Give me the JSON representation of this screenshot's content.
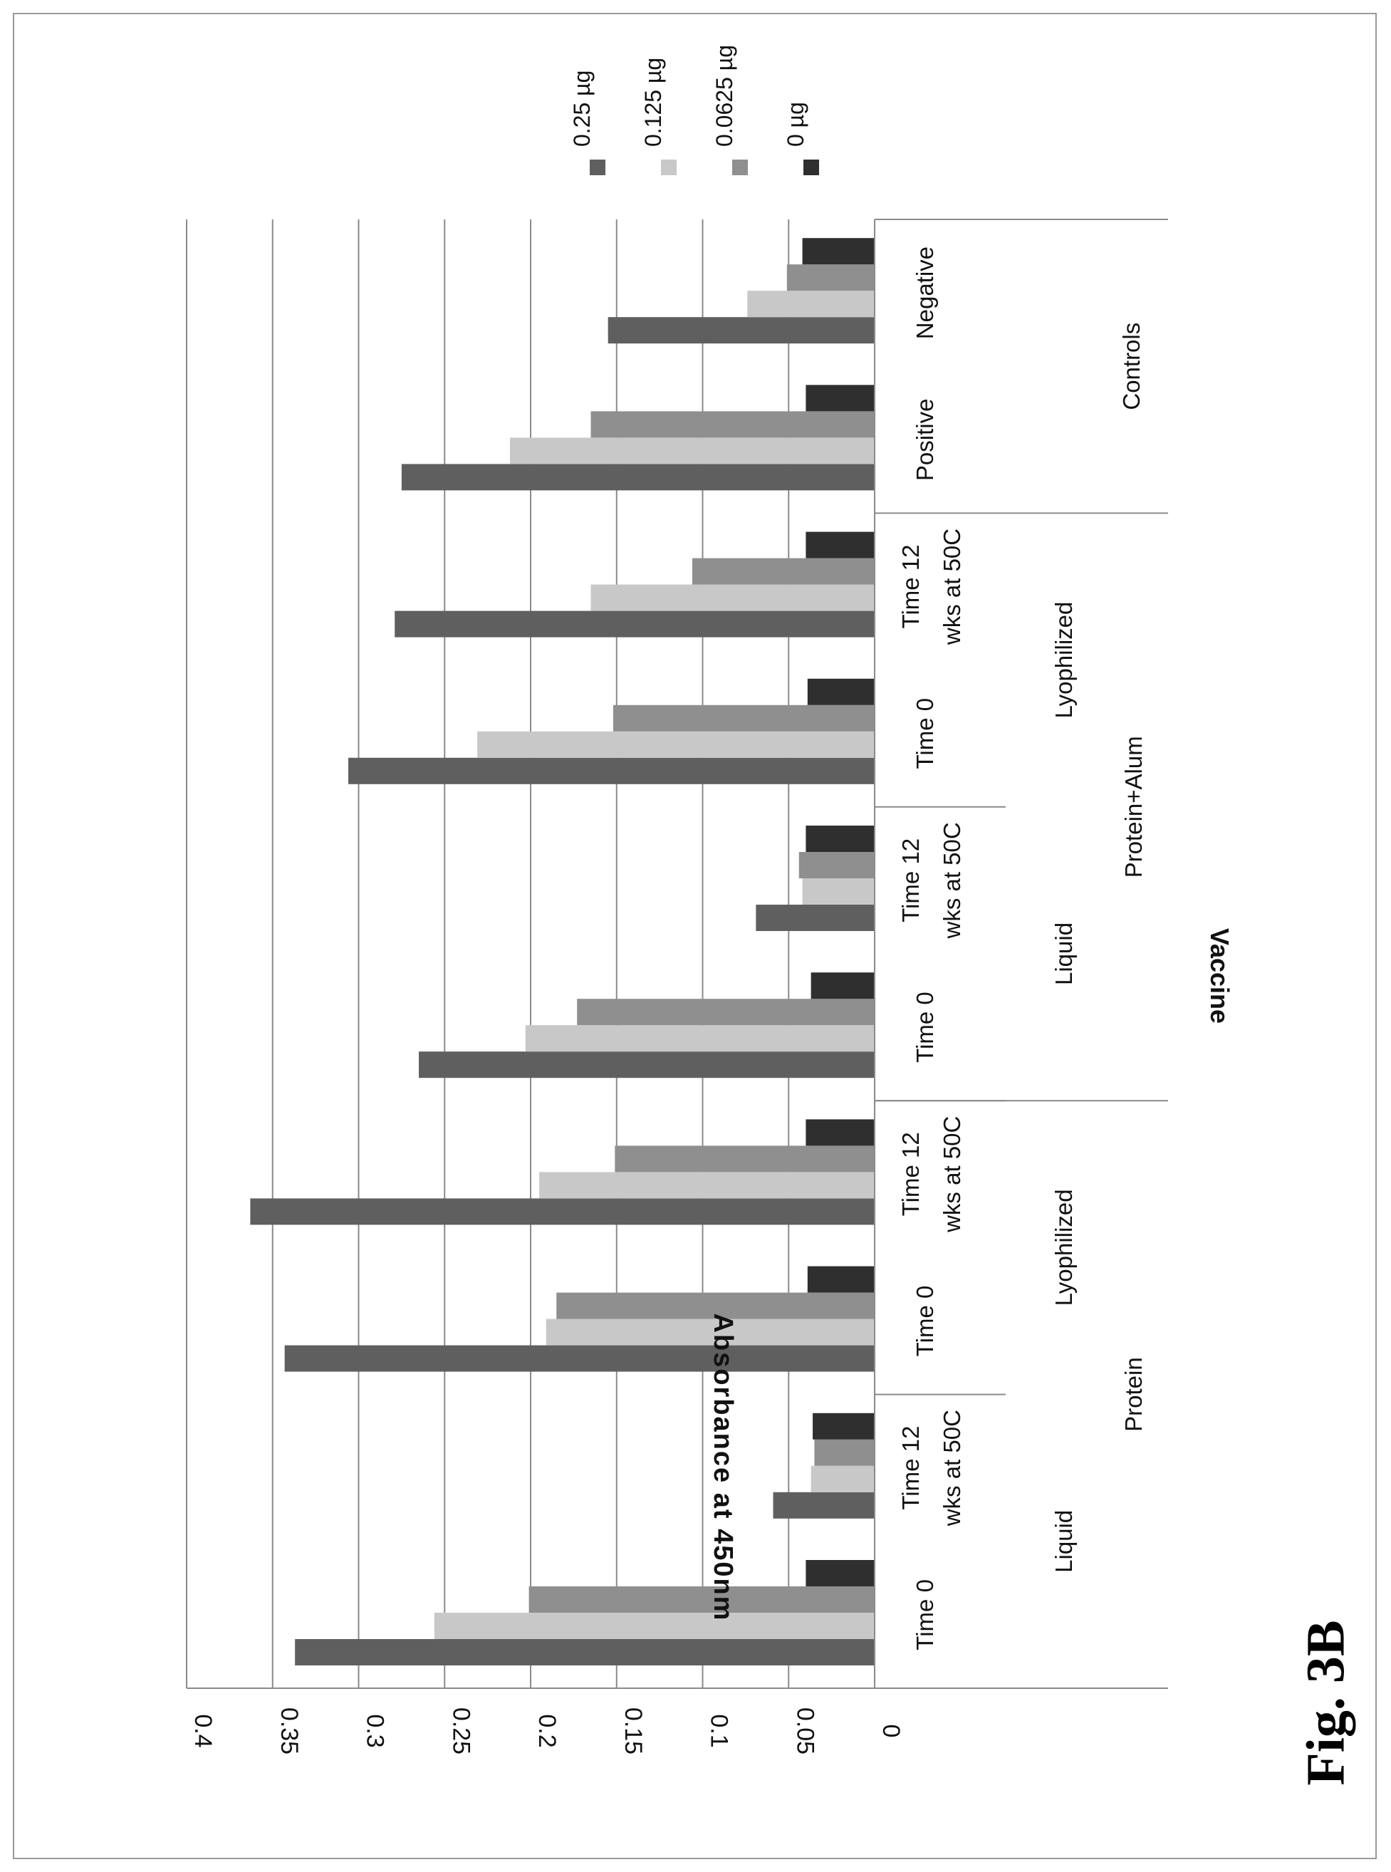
{
  "figure_label": "Fig. 3B",
  "chart_data": {
    "type": "bar",
    "orientation": "horizontal",
    "ylabel": "Absorbance  at 450nm",
    "xlabel": "Vaccine",
    "ylim": [
      0,
      0.4
    ],
    "y_ticks": [
      "0",
      "0.05",
      "0.1",
      "0.15",
      "0.2",
      "0.25",
      "0.3",
      "0.35",
      "0.4"
    ],
    "grid": true,
    "legend_position": "top-right",
    "categories": [
      [
        "Time 0"
      ],
      [
        "Time 12",
        "wks at 50C"
      ],
      [
        "Time 0"
      ],
      [
        "Time 12",
        "wks at 50C"
      ],
      [
        "Time 0"
      ],
      [
        "Time 12",
        "wks at 50C"
      ],
      [
        "Time 0"
      ],
      [
        "Time 12",
        "wks at 50C"
      ],
      [
        "Positive"
      ],
      [
        "Negative"
      ]
    ],
    "level2_groups": [
      "Liquid",
      "Lyophilized",
      "Liquid",
      "Lyophilized",
      "Controls"
    ],
    "level3_groups": [
      "Protein",
      "Protein+Alum"
    ],
    "series": [
      {
        "name": "0.25 µg",
        "color": "#5f5f5f",
        "values": [
          0.337,
          0.059,
          0.343,
          0.363,
          0.265,
          0.069,
          0.306,
          0.279,
          0.275,
          0.155
        ]
      },
      {
        "name": "0.125 µg",
        "color": "#c8c8c8",
        "values": [
          0.256,
          0.037,
          0.191,
          0.195,
          0.203,
          0.042,
          0.231,
          0.165,
          0.212,
          0.074
        ]
      },
      {
        "name": "0.0625 µg",
        "color": "#8f8f8f",
        "values": [
          0.201,
          0.035,
          0.185,
          0.151,
          0.173,
          0.044,
          0.152,
          0.106,
          0.165,
          0.051
        ]
      },
      {
        "name": "0 µg",
        "color": "#2f2f2f",
        "values": [
          0.04,
          0.036,
          0.039,
          0.04,
          0.037,
          0.04,
          0.039,
          0.04,
          0.04,
          0.042
        ]
      }
    ]
  }
}
